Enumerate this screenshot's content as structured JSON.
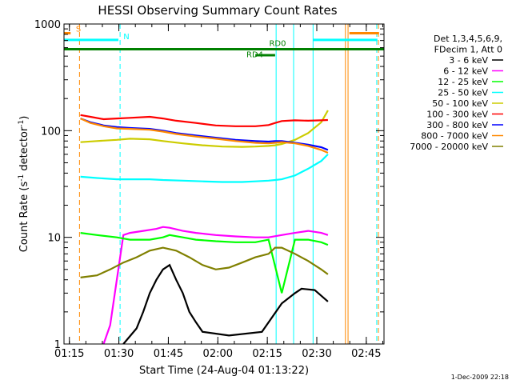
{
  "chart_data": {
    "type": "line",
    "title": "HESSI Observing Summary Count Rates",
    "xlabel": "Start Time (24-Aug-04 01:13:22)",
    "ylabel": "Count Rate (s⁻¹ detector⁻¹)",
    "ylabel_parts": {
      "main": "Count Rate (s",
      "sup1": "-1",
      "mid": " detector",
      "sup2": "-1",
      "end": ")"
    },
    "x_axis": {
      "unit": "minutes after 01:13:22",
      "range": [
        0,
        97
      ],
      "ticks": [
        {
          "x": 1.63,
          "label": "01:15"
        },
        {
          "x": 16.63,
          "label": "01:30"
        },
        {
          "x": 31.63,
          "label": "01:45"
        },
        {
          "x": 46.63,
          "label": "02:00"
        },
        {
          "x": 61.63,
          "label": "02:15"
        },
        {
          "x": 76.63,
          "label": "02:30"
        },
        {
          "x": 91.63,
          "label": "02:45"
        }
      ]
    },
    "y_axis": {
      "scale": "log",
      "range": [
        1,
        1000
      ],
      "ticks": [
        {
          "y": 1,
          "label": "1"
        },
        {
          "y": 10,
          "label": "10"
        },
        {
          "y": 100,
          "label": "100"
        },
        {
          "y": 1000,
          "label": "1000"
        }
      ]
    },
    "legend": {
      "header": [
        "Det 1,3,4,5,6,9,",
        "FDecim 1, Att 0"
      ],
      "placement": "right",
      "entries": [
        {
          "label": "3 - 6 keV",
          "color": "#000000"
        },
        {
          "label": "6 - 12 keV",
          "color": "#ff00ff"
        },
        {
          "label": "12 - 25 keV",
          "color": "#00ff00"
        },
        {
          "label": "25 - 50 keV",
          "color": "#00ffff"
        },
        {
          "label": "50 - 100 keV",
          "color": "#cccc00"
        },
        {
          "label": "100 - 300 keV",
          "color": "#ff0000"
        },
        {
          "label": "300 - 800 keV",
          "color": "#0000ff"
        },
        {
          "label": "800 - 7000 keV",
          "color": "#ff8800"
        },
        {
          "label": "7000 - 20000 keV",
          "color": "#808000"
        }
      ]
    },
    "series": [
      {
        "name": "3 - 6 keV",
        "color": "#000000",
        "x": [
          18,
          22,
          24,
          26,
          28,
          30,
          32,
          34,
          36,
          38,
          40,
          42,
          50,
          60,
          66,
          70,
          72,
          76,
          80
        ],
        "y": [
          1,
          1.4,
          2,
          3,
          4,
          5,
          5.5,
          4,
          3,
          2,
          1.6,
          1.3,
          1.2,
          1.3,
          2.4,
          3,
          3.3,
          3.2,
          2.5
        ]
      },
      {
        "name": "6 - 12 keV",
        "color": "#ff00ff",
        "x": [
          12,
          14,
          18,
          20,
          24,
          28,
          30,
          32,
          36,
          40,
          46,
          52,
          58,
          62,
          66,
          70,
          74,
          78,
          80
        ],
        "y": [
          1,
          1.5,
          10.5,
          11,
          11.5,
          12,
          12.5,
          12.3,
          11.5,
          11,
          10.5,
          10.2,
          10,
          10,
          10.5,
          11,
          11.5,
          11,
          10.5
        ]
      },
      {
        "name": "12 - 25 keV",
        "color": "#00ff00",
        "x": [
          5,
          10,
          16,
          20,
          26,
          30,
          32,
          36,
          40,
          46,
          52,
          58,
          62,
          66,
          70,
          74,
          78,
          80
        ],
        "y": [
          11,
          10.5,
          10,
          9.5,
          9.5,
          10,
          10.5,
          10,
          9.5,
          9.2,
          9,
          9,
          9.5,
          3,
          9.5,
          9.5,
          9,
          8.5
        ]
      },
      {
        "name": "25 - 50 keV",
        "color": "#00ffff",
        "x": [
          5,
          10,
          16,
          20,
          26,
          30,
          36,
          42,
          48,
          54,
          58,
          62,
          64,
          66,
          70,
          74,
          78,
          80
        ],
        "y": [
          37,
          36,
          35,
          35,
          35,
          34.5,
          34,
          33.5,
          33,
          33,
          33.5,
          34,
          34.5,
          35,
          38,
          44,
          52,
          60
        ]
      },
      {
        "name": "50 - 100 keV",
        "color": "#cccc00",
        "x": [
          5,
          10,
          16,
          20,
          26,
          30,
          36,
          42,
          48,
          54,
          58,
          62,
          64,
          66,
          70,
          74,
          78,
          80
        ],
        "y": [
          78,
          80,
          82,
          84,
          83,
          80,
          76,
          73,
          71,
          70.5,
          71,
          72,
          73,
          75,
          82,
          95,
          120,
          155
        ]
      },
      {
        "name": "100 - 300 keV",
        "color": "#ff0000",
        "x": [
          5,
          8,
          12,
          16,
          20,
          26,
          30,
          34,
          40,
          46,
          52,
          58,
          62,
          64,
          66,
          70,
          74,
          78,
          80
        ],
        "y": [
          140,
          135,
          128,
          130,
          132,
          135,
          130,
          124,
          118,
          112,
          110,
          110,
          113,
          118,
          123,
          125,
          124,
          125,
          126
        ]
      },
      {
        "name": "300 - 800 keV",
        "color": "#0000ff",
        "x": [
          5,
          8,
          12,
          16,
          20,
          26,
          30,
          34,
          40,
          46,
          52,
          58,
          62,
          64,
          66,
          70,
          74,
          78,
          80
        ],
        "y": [
          130,
          120,
          112,
          108,
          106,
          104,
          100,
          95,
          90,
          86,
          82,
          80,
          79,
          80,
          80,
          77,
          74,
          70,
          66
        ]
      },
      {
        "name": "800 - 7000 keV",
        "color": "#ff8800",
        "x": [
          5,
          8,
          12,
          16,
          20,
          26,
          30,
          34,
          40,
          46,
          52,
          58,
          62,
          64,
          66,
          70,
          74,
          78,
          80
        ],
        "y": [
          130,
          118,
          110,
          105,
          104,
          102,
          98,
          93,
          88,
          84,
          80,
          77,
          76,
          77,
          78,
          76,
          72,
          66,
          62
        ]
      },
      {
        "name": "7000 - 20000 keV",
        "color": "#808000",
        "x": [
          5,
          10,
          14,
          18,
          22,
          26,
          30,
          34,
          38,
          42,
          46,
          50,
          54,
          58,
          62,
          64,
          66,
          70,
          74,
          78,
          80
        ],
        "y": [
          4.2,
          4.4,
          5,
          5.8,
          6.5,
          7.5,
          8,
          7.5,
          6.5,
          5.5,
          5,
          5.2,
          5.8,
          6.5,
          7,
          8,
          8,
          7,
          6,
          5,
          4.5
        ]
      }
    ],
    "annotations": {
      "lines": [
        {
          "x": 4.7,
          "color": "#ff8800",
          "style": "dashed"
        },
        {
          "x": 17,
          "color": "#00ffff",
          "style": "dashed"
        },
        {
          "x": 64.3,
          "color": "#00ffff",
          "style": "solid"
        },
        {
          "x": 69.6,
          "color": "#00ffff",
          "style": "solid"
        },
        {
          "x": 75.5,
          "color": "#00ffff",
          "style": "solid"
        },
        {
          "x": 85.3,
          "color": "#ff8800",
          "style": "solid"
        },
        {
          "x": 86.1,
          "color": "#ff8800",
          "style": "solid"
        },
        {
          "x": 94.8,
          "color": "#00ffff",
          "style": "dashed"
        },
        {
          "x": 95.3,
          "color": "#ff8800",
          "style": "dashed"
        }
      ],
      "bars": [
        {
          "x": [
            0,
            97
          ],
          "y": 580,
          "color": "#008000",
          "width": 3
        },
        {
          "x": [
            58,
            64
          ],
          "y": 510,
          "color": "#008000",
          "width": 3
        },
        {
          "x": [
            0,
            16.5
          ],
          "y": 710,
          "color": "#00ffff",
          "width": 3
        },
        {
          "x": [
            75.5,
            95
          ],
          "y": 710,
          "color": "#00ffff",
          "width": 3
        },
        {
          "x": [
            0,
            2
          ],
          "y": 820,
          "color": "#ff8800",
          "width": 3
        },
        {
          "x": [
            86.5,
            95.5
          ],
          "y": 820,
          "color": "#ff8800",
          "width": 3
        }
      ],
      "labels": [
        {
          "text": "S",
          "x": 3.6,
          "y": 850,
          "color": "#ff8800"
        },
        {
          "text": "N",
          "x": 18,
          "y": 720,
          "color": "#00ffff"
        },
        {
          "text": "RD0",
          "x": 62.2,
          "y": 620,
          "color": "#008000"
        },
        {
          "text": "RD4",
          "x": 55.3,
          "y": 490,
          "color": "#008000"
        }
      ]
    }
  },
  "footer": {
    "timestamp": "1-Dec-2009 22:18"
  }
}
